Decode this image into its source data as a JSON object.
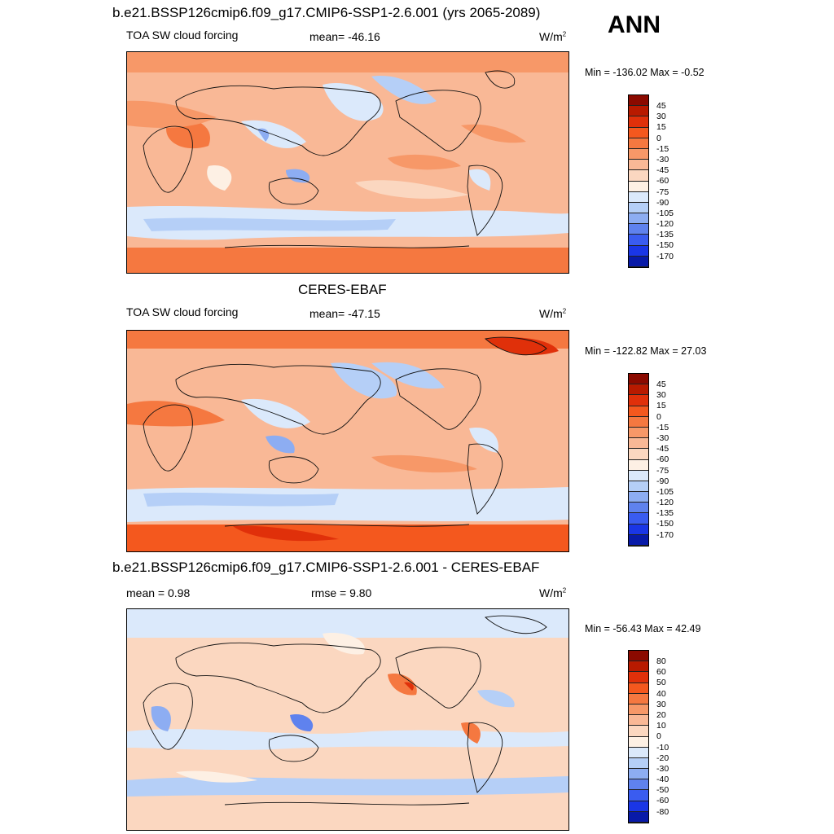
{
  "header": {
    "season": "ANN"
  },
  "panels": [
    {
      "title": "b.e21.BSSP126cmip6.f09_g17.CMIP6-SSP1-2.6.001 (yrs 2065-2089)",
      "variable": "TOA SW cloud forcing",
      "stat": "mean= -46.16",
      "units": "W/m",
      "units_sup": "2",
      "minmax": "Min = -136.02 Max =  -0.52",
      "levels": [
        "45",
        "30",
        "15",
        "0",
        "-15",
        "-30",
        "-45",
        "-60",
        "-75",
        "-90",
        "-105",
        "-120",
        "-135",
        "-150",
        "-170"
      ],
      "colors": [
        "#8b0a00",
        "#b81a00",
        "#e0300a",
        "#f4581e",
        "#f57840",
        "#f79868",
        "#f9b896",
        "#fbd7c0",
        "#fdf0e4",
        "#dbe9fb",
        "#b5cff7",
        "#8dadf2",
        "#5f82ee",
        "#3a5cf0",
        "#1a36e6",
        "#081aa8"
      ]
    },
    {
      "title": "CERES-EBAF",
      "variable": "TOA SW cloud forcing",
      "stat": "mean= -47.15",
      "units": "W/m",
      "units_sup": "2",
      "minmax": "Min = -122.82 Max =  27.03",
      "levels": [
        "45",
        "30",
        "15",
        "0",
        "-15",
        "-30",
        "-45",
        "-60",
        "-75",
        "-90",
        "-105",
        "-120",
        "-135",
        "-150",
        "-170"
      ],
      "colors": [
        "#8b0a00",
        "#b81a00",
        "#e0300a",
        "#f4581e",
        "#f57840",
        "#f79868",
        "#f9b896",
        "#fbd7c0",
        "#fdf0e4",
        "#dbe9fb",
        "#b5cff7",
        "#8dadf2",
        "#5f82ee",
        "#3a5cf0",
        "#1a36e6",
        "#081aa8"
      ]
    },
    {
      "title": "b.e21.BSSP126cmip6.f09_g17.CMIP6-SSP1-2.6.001 - CERES-EBAF",
      "variable": "mean =   0.98",
      "stat": "rmse =   9.80",
      "units": "W/m",
      "units_sup": "2",
      "minmax": "Min = -56.43 Max =  42.49",
      "levels": [
        "80",
        "60",
        "50",
        "40",
        "30",
        "20",
        "10",
        "0",
        "-10",
        "-20",
        "-30",
        "-40",
        "-50",
        "-60",
        "-80"
      ],
      "colors": [
        "#8b0a00",
        "#b81a00",
        "#e0300a",
        "#f4581e",
        "#f57840",
        "#f79868",
        "#f9b896",
        "#fbd7c0",
        "#fdf0e4",
        "#dbe9fb",
        "#b5cff7",
        "#8dadf2",
        "#5f82ee",
        "#3a5cf0",
        "#1a36e6",
        "#081aa8"
      ]
    }
  ]
}
